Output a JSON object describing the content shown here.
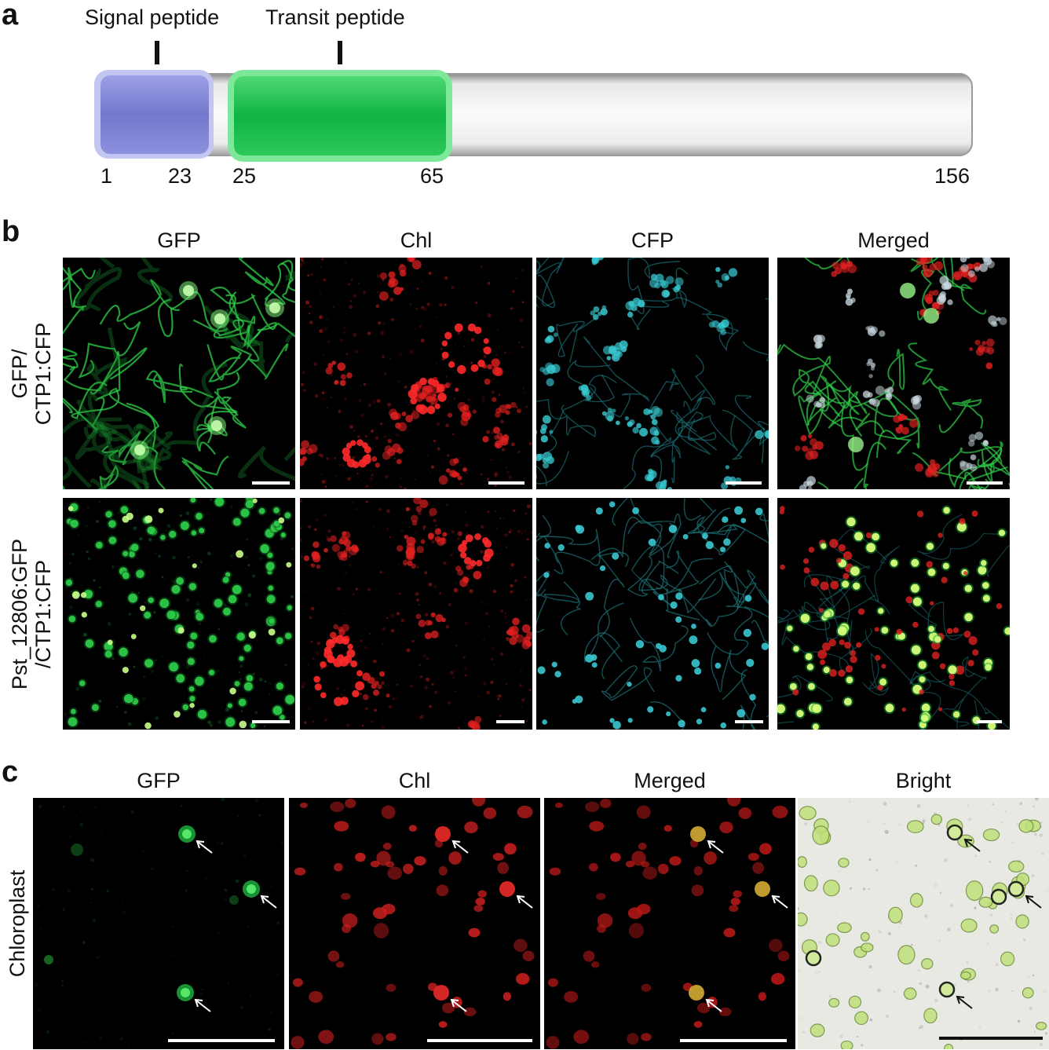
{
  "panels": {
    "a": {
      "letter": "a",
      "features": [
        {
          "name": "Signal peptide",
          "start": "1",
          "end": "23",
          "color": "#7b7fd0"
        },
        {
          "name": "Transit peptide",
          "start": "25",
          "end": "65",
          "color": "#1fbf4f"
        }
      ],
      "length_label": "156"
    },
    "b": {
      "letter": "b",
      "columns": [
        "GFP",
        "Chl",
        "CFP",
        "Merged"
      ],
      "rows": [
        {
          "line1": "GFP/",
          "line2": "CTP1:CFP"
        },
        {
          "line1": "Pst_12806:GFP",
          "line2": "/CTP1:CFP"
        }
      ]
    },
    "c": {
      "letter": "c",
      "columns": [
        "GFP",
        "Chl",
        "Merged",
        "Bright"
      ],
      "row": "Chloroplast"
    }
  },
  "colors": {
    "gfp": "#2fd24a",
    "chl": "#e02020",
    "cfp": "#38c8d0",
    "signal": "#7b7fd0",
    "transit": "#1fbf4f",
    "bright_bg": "#e9e9e4"
  }
}
